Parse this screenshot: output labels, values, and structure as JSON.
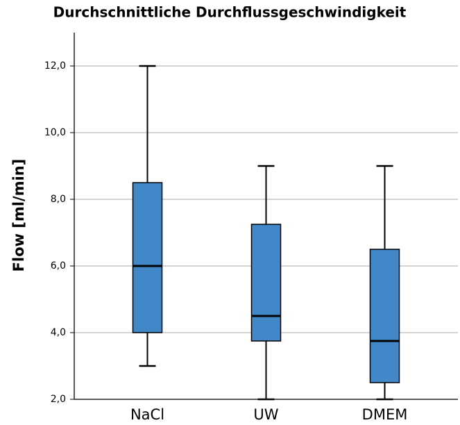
{
  "chart_data": {
    "type": "box",
    "title": "Durchschnittliche Durchflussgeschwindigkeit",
    "ylabel": "Flow [ml/min]",
    "categories": [
      "NaCl",
      "UW",
      "DMEM"
    ],
    "boxes": [
      {
        "min": 3,
        "q1": 4,
        "median": 6,
        "q3": 8.5,
        "max": 12
      },
      {
        "min": 2,
        "q1": 3.75,
        "median": 4.5,
        "q3": 7.25,
        "max": 9
      },
      {
        "min": 2,
        "q1": 2.5,
        "median": 3.75,
        "q3": 6.5,
        "max": 9
      }
    ],
    "color": "#4287c8",
    "ylim": [
      2,
      13
    ],
    "yticks": [
      {
        "value": 2,
        "label": "2,0"
      },
      {
        "value": 4,
        "label": "4,0"
      },
      {
        "value": 6,
        "label": "6,0"
      },
      {
        "value": 8,
        "label": "8,0"
      },
      {
        "value": 10,
        "label": "10,0"
      },
      {
        "value": 12,
        "label": "12,0"
      }
    ],
    "grid": true
  }
}
